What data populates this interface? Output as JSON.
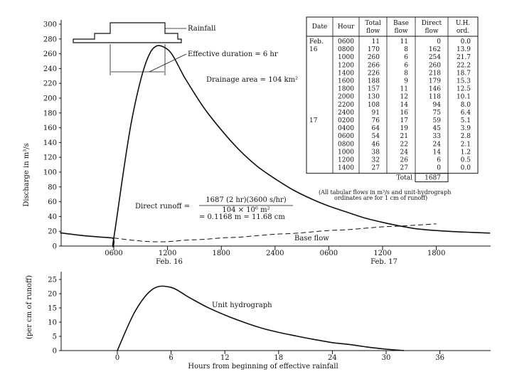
{
  "chart_data": [
    {
      "type": "line",
      "ylabel": "Discharge in m³/s",
      "ylim": [
        0,
        300
      ],
      "yticks": [
        0,
        20,
        40,
        60,
        80,
        100,
        120,
        140,
        160,
        180,
        200,
        220,
        240,
        260,
        280,
        300
      ],
      "xticks": [
        "0600",
        "1200",
        "1800",
        "2400",
        "0600",
        "1200",
        "1800"
      ],
      "date_labels": [
        "Feb. 16",
        "Feb. 17"
      ],
      "series": [
        {
          "name": "",
          "x": [
            "Feb16 0600",
            "Feb16 0800",
            "Feb16 1000",
            "Feb16 1200",
            "Feb16 1400",
            "Feb16 1600",
            "Feb16 1800",
            "Feb16 2000",
            "Feb16 2200",
            "Feb16 2400",
            "Feb17 0200",
            "Feb17 0400",
            "Feb17 0600",
            "Feb17 0800",
            "Feb17 1000",
            "Feb17 1200",
            "Feb17 1400"
          ],
          "values": [
            11,
            170,
            260,
            266,
            226,
            188,
            157,
            130,
            108,
            91,
            76,
            64,
            54,
            46,
            38,
            32,
            27
          ]
        }
      ],
      "annotations": {
        "rainfall": "Rainfall",
        "effective_duration": "Effective duration = 6 hr",
        "drainage_area": "Drainage area = 104 km²",
        "base_flow": "Base flow",
        "direct_runoff_eq_lhs": "Direct runoff =",
        "direct_runoff_eq_num": "1687 (2 hr)(3600 s/hr)",
        "direct_runoff_eq_den": "104 × 10⁶ m²",
        "direct_runoff_eq_res": "= 0.1168 m = 11.68 cm",
        "table_note_1": "(All tabular flows in m³/s and unit-hydrograph",
        "table_note_2": "ordinates are for 1 cm of runoff)"
      }
    },
    {
      "type": "line",
      "xlabel": "Hours from beginning of effective rainfall",
      "ylabel": "(per cm of runoff)",
      "ylim": [
        0,
        25
      ],
      "yticks": [
        0,
        5,
        10,
        15,
        20,
        25
      ],
      "xticks": [
        0,
        6,
        12,
        18,
        24,
        30,
        36
      ],
      "annotation": "Unit hydrograph",
      "series": [
        {
          "name": "",
          "x": [
            0,
            2,
            4,
            6,
            8,
            10,
            12,
            14,
            16,
            18,
            20,
            22,
            24,
            26,
            28,
            30,
            32
          ],
          "values": [
            0.0,
            13.9,
            21.7,
            22.2,
            18.7,
            15.3,
            12.5,
            10.1,
            8.0,
            6.4,
            5.1,
            3.9,
            2.8,
            2.1,
            1.2,
            0.5,
            0.0
          ]
        }
      ]
    }
  ],
  "table": {
    "headers": [
      "Date",
      "Hour",
      "Total flow",
      "Base flow",
      "Direct flow",
      "U.H. ord."
    ],
    "rows": [
      [
        "Feb.",
        "0600",
        "11",
        "11",
        "0",
        "0.0"
      ],
      [
        "16",
        "0800",
        "170",
        "8",
        "162",
        "13.9"
      ],
      [
        "",
        "1000",
        "260",
        "6",
        "254",
        "21.7"
      ],
      [
        "",
        "1200",
        "266",
        "6",
        "260",
        "22.2"
      ],
      [
        "",
        "1400",
        "226",
        "8",
        "218",
        "18.7"
      ],
      [
        "",
        "1600",
        "188",
        "9",
        "179",
        "15.3"
      ],
      [
        "",
        "1800",
        "157",
        "11",
        "146",
        "12.5"
      ],
      [
        "",
        "2000",
        "130",
        "12",
        "118",
        "10.1"
      ],
      [
        "",
        "2200",
        "108",
        "14",
        "94",
        "8.0"
      ],
      [
        "",
        "2400",
        "91",
        "16",
        "75",
        "6.4"
      ],
      [
        "17",
        "0200",
        "76",
        "17",
        "59",
        "5.1"
      ],
      [
        "",
        "0400",
        "64",
        "19",
        "45",
        "3.9"
      ],
      [
        "",
        "0600",
        "54",
        "21",
        "33",
        "2.8"
      ],
      [
        "",
        "0800",
        "46",
        "22",
        "24",
        "2.1"
      ],
      [
        "",
        "1000",
        "38",
        "24",
        "14",
        "1.2"
      ],
      [
        "",
        "1200",
        "32",
        "26",
        "6",
        "0.5"
      ],
      [
        "",
        "1400",
        "27",
        "27",
        "0",
        "0.0"
      ]
    ],
    "total_label": "Total",
    "total_value": "1687"
  }
}
